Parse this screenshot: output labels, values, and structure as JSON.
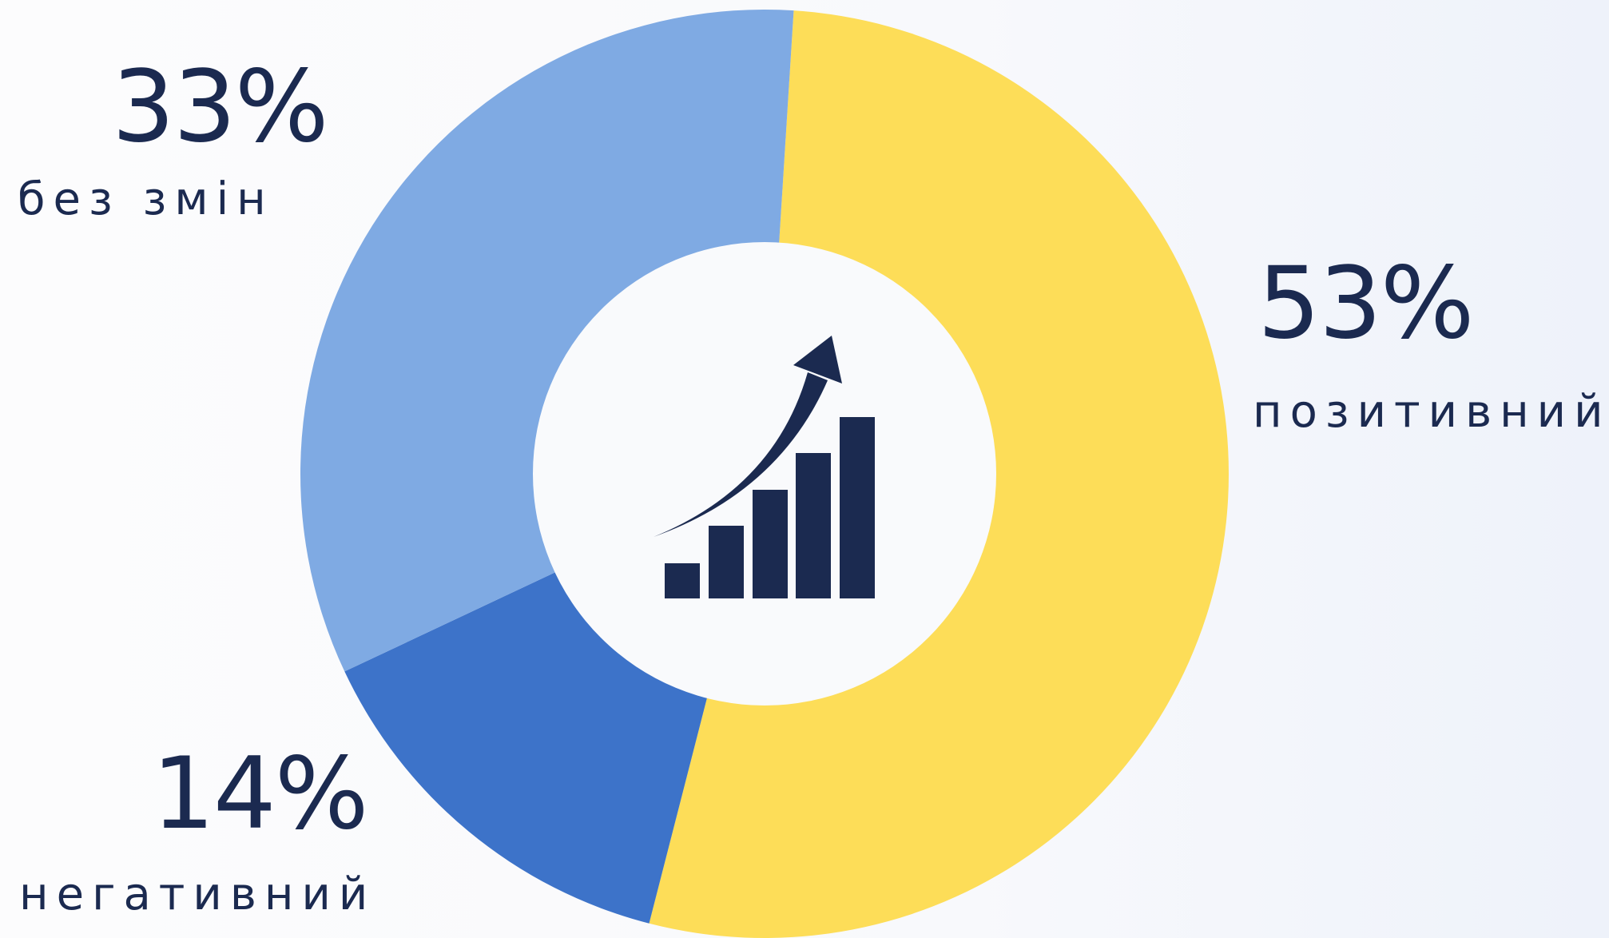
{
  "chart_data": {
    "type": "pie",
    "subtype": "donut",
    "title": "",
    "slices": [
      {
        "label": "позитивний",
        "value": 53,
        "value_label": "53%",
        "color": "#fddd58"
      },
      {
        "label": "негативний",
        "value": 14,
        "value_label": "14%",
        "color": "#3d73c9"
      },
      {
        "label": "без змін",
        "value": 33,
        "value_label": "33%",
        "color": "#7faae3"
      }
    ],
    "start": "top, clockwise",
    "center_icon": "growth-chart-icon"
  },
  "colors": {
    "text": "#1b2a50",
    "center": "#f9fafc",
    "icon": "#1b2a50"
  }
}
